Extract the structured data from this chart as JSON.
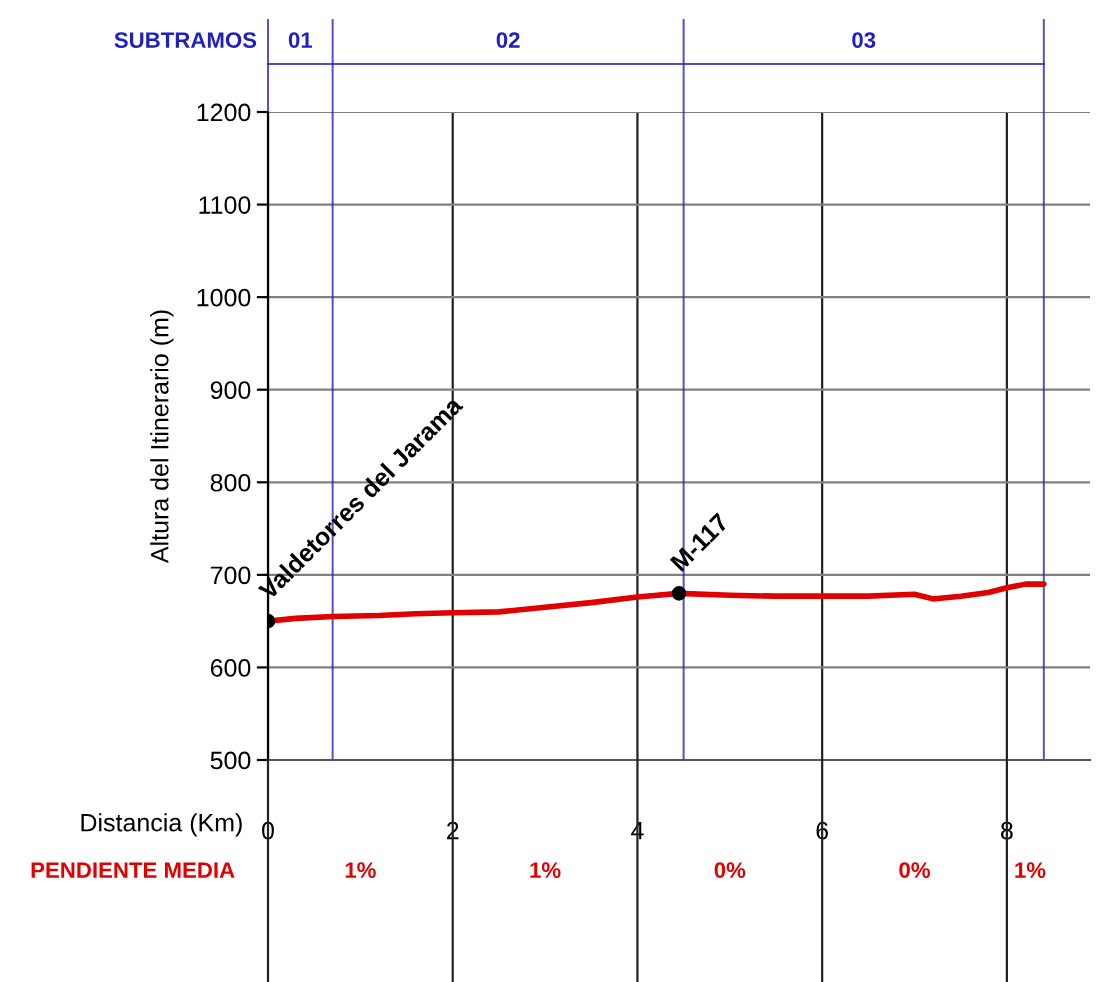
{
  "chart_data": {
    "type": "line",
    "xlabel": "Distancia (Km)",
    "ylabel": "Altura del Itinerario (m)",
    "x": [
      0,
      0.3,
      0.7,
      1.2,
      1.6,
      2.0,
      2.5,
      3.0,
      3.5,
      4.0,
      4.45,
      5.0,
      5.5,
      6.0,
      6.5,
      7.0,
      7.2,
      7.5,
      7.8,
      8.0,
      8.2,
      8.4
    ],
    "series": [
      {
        "color": "#e00000",
        "values": [
          650,
          653,
          655,
          656,
          658,
          659,
          660,
          665,
          670,
          676,
          680,
          678,
          677,
          677,
          677,
          679,
          674,
          677,
          681,
          686,
          690,
          690
        ]
      },
      {
        "type": "scatter",
        "color": "#000000",
        "x": [
          0,
          4.45
        ],
        "values": [
          650,
          680
        ]
      }
    ],
    "xlim": [
      0,
      8.9
    ],
    "ylim": [
      500,
      1200
    ],
    "xticks": [
      0,
      2,
      4,
      6,
      8
    ],
    "yticks": [
      500,
      600,
      700,
      800,
      900,
      1000,
      1100,
      1200
    ],
    "grid": true,
    "ref_lines": [
      {
        "axis": "x",
        "value": 0,
        "color": "#2020c0"
      },
      {
        "axis": "x",
        "value": 0.7,
        "color": "#2020c0"
      },
      {
        "axis": "x",
        "value": 4.5,
        "color": "#2020c0"
      },
      {
        "axis": "x",
        "value": 8.4,
        "color": "#2020c0"
      }
    ],
    "annotations": [
      {
        "text": "Valdetorres del Jarama",
        "x": 0,
        "y": 650
      },
      {
        "text": "M-117",
        "x": 4.45,
        "y": 680
      },
      "SUBTRAMOS",
      "01",
      "02",
      "03",
      "PENDIENTE MEDIA",
      "1%",
      "1%",
      "0%",
      "0%",
      "1%"
    ]
  }
}
